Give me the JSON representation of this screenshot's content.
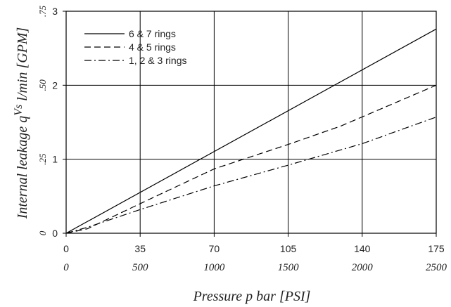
{
  "chart_data": {
    "type": "line",
    "xlabel": "Pressure p bar [PSI]",
    "ylabel_main": "Internal leakage q",
    "ylabel_sup": "Vs",
    "ylabel_rest": " l/min [GPM]",
    "x_bar_ticks": [
      "0",
      "35",
      "70",
      "105",
      "140",
      "175"
    ],
    "x_psi_ticks": [
      "0",
      "500",
      "1000",
      "1500",
      "2000",
      "2500"
    ],
    "y_lpm_ticks": [
      "0",
      "1",
      "2",
      "3"
    ],
    "y_gpm_ticks": [
      "0",
      ".25",
      ".50",
      ".75"
    ],
    "xlim": [
      0,
      175
    ],
    "ylim": [
      0,
      3
    ],
    "grid": true,
    "legend_position": "top-left",
    "series": [
      {
        "name": "6 & 7 rings",
        "dash": "solid",
        "x": [
          0,
          175
        ],
        "y": [
          0,
          2.76
        ]
      },
      {
        "name": "4 & 5 rings",
        "dash": "dashed",
        "x": [
          0,
          10,
          35,
          70,
          105,
          130,
          175
        ],
        "y": [
          0,
          0.06,
          0.4,
          0.87,
          1.2,
          1.45,
          2.0
        ]
      },
      {
        "name": "1, 2 & 3 rings",
        "dash": "dashdot",
        "x": [
          0,
          10,
          35,
          70,
          105,
          140,
          175
        ],
        "y": [
          0,
          0.08,
          0.32,
          0.64,
          0.92,
          1.21,
          1.57
        ]
      }
    ]
  }
}
